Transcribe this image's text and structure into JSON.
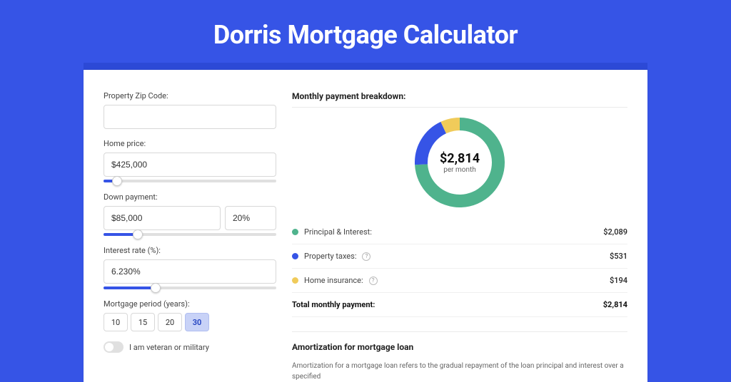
{
  "page": {
    "title": "Dorris Mortgage Calculator",
    "background_color": "#3654e6",
    "outer_shadow_color": "#2c49d6",
    "panel_background": "#ffffff"
  },
  "form": {
    "zip_label": "Property Zip Code:",
    "zip_value": "",
    "home_price_label": "Home price:",
    "home_price_value": "$425,000",
    "home_price_slider": {
      "fill_pct": 8,
      "thumb_pct": 8
    },
    "down_payment_label": "Down payment:",
    "down_payment_value": "$85,000",
    "down_payment_pct": "20%",
    "down_payment_slider": {
      "fill_pct": 20,
      "thumb_pct": 20
    },
    "interest_label": "Interest rate (%):",
    "interest_value": "6.230%",
    "interest_slider": {
      "fill_pct": 30,
      "thumb_pct": 30
    },
    "period_label": "Mortgage period (years):",
    "period_options": [
      "10",
      "15",
      "20",
      "30"
    ],
    "period_selected": "30",
    "veteran_label": "I am veteran or military",
    "veteran_on": false
  },
  "breakdown": {
    "title": "Monthly payment breakdown:",
    "donut": {
      "center_amount": "$2,814",
      "center_sub": "per month",
      "slices": [
        {
          "label": "principal",
          "value": 2089,
          "color": "#4fb38d",
          "start_deg": 0,
          "end_deg": 267
        },
        {
          "label": "taxes",
          "value": 531,
          "color": "#3654e6",
          "start_deg": 267,
          "end_deg": 335
        },
        {
          "label": "insurance",
          "value": 194,
          "color": "#f0cb5a",
          "start_deg": 335,
          "end_deg": 360
        }
      ],
      "thickness": 18,
      "size": 126
    },
    "rows": [
      {
        "dot_color": "#4fb38d",
        "label": "Principal & Interest:",
        "value": "$2,089",
        "info": false
      },
      {
        "dot_color": "#3654e6",
        "label": "Property taxes:",
        "value": "$531",
        "info": true
      },
      {
        "dot_color": "#f0cb5a",
        "label": "Home insurance:",
        "value": "$194",
        "info": true
      }
    ],
    "total_label": "Total monthly payment:",
    "total_value": "$2,814"
  },
  "amortization": {
    "title": "Amortization for mortgage loan",
    "text": "Amortization for a mortgage loan refers to the gradual repayment of the loan principal and interest over a specified"
  }
}
